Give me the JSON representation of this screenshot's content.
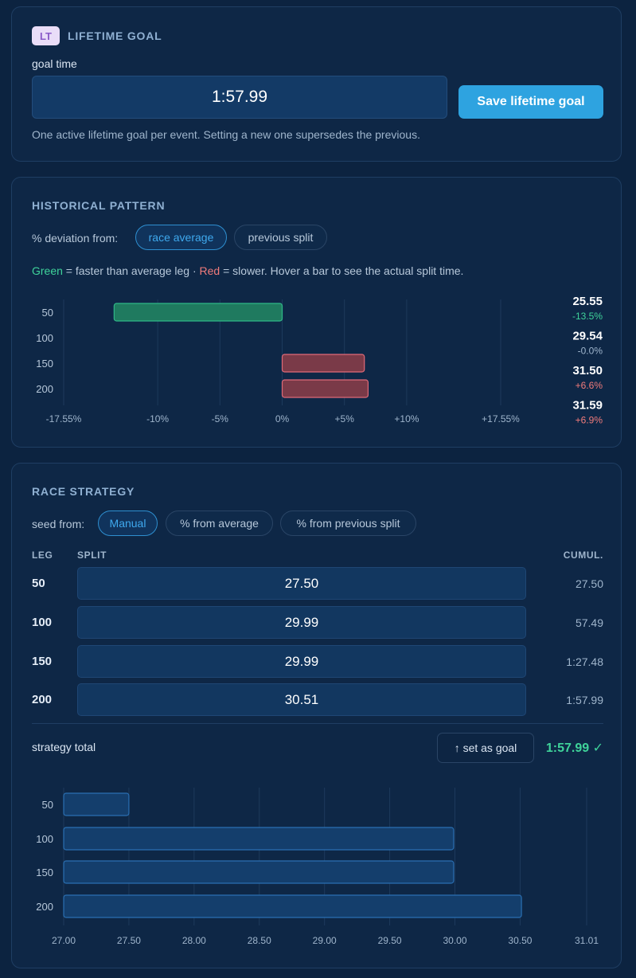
{
  "lifetime_goal": {
    "badge": "LT",
    "title": "LIFETIME GOAL",
    "goal_label": "goal time",
    "goal_value": "1:57.99",
    "save_label": "Save lifetime goal",
    "note": "One active lifetime goal per event. Setting a new one supersedes the previous."
  },
  "historical_pattern": {
    "title": "HISTORICAL PATTERN",
    "deviation_label": "% deviation from:",
    "options": [
      "race average",
      "previous split"
    ],
    "selected": "race average",
    "legend": {
      "green_word": "Green",
      "green_text": " = faster than average leg · ",
      "red_word": "Red",
      "red_text": " = slower. Hover a bar to see the actual split time."
    },
    "colors": {
      "faster": "#1f7a5f",
      "slower": "#7a3a48"
    }
  },
  "race_strategy": {
    "title": "RACE STRATEGY",
    "seed_label": "seed from:",
    "seed_options": [
      "Manual",
      "% from average",
      "% from previous split"
    ],
    "seed_selected": "Manual",
    "col_leg": "LEG",
    "col_split": "SPLIT",
    "col_cumul": "CUMUL.",
    "rows": [
      {
        "leg": "50",
        "split": "27.50",
        "cumul": "27.50"
      },
      {
        "leg": "100",
        "split": "29.99",
        "cumul": "57.49"
      },
      {
        "leg": "150",
        "split": "29.99",
        "cumul": "1:27.48"
      },
      {
        "leg": "200",
        "split": "30.51",
        "cumul": "1:57.99"
      }
    ],
    "total_label": "strategy total",
    "set_goal_label": "↑ set as goal",
    "total_value": "1:57.99 ✓"
  },
  "chart_data": [
    {
      "type": "bar",
      "orientation": "horizontal",
      "categories": [
        "50",
        "100",
        "150",
        "200"
      ],
      "values": [
        -13.5,
        -0.0,
        6.6,
        6.9
      ],
      "split_times": [
        "25.55",
        "29.54",
        "31.50",
        "31.59"
      ],
      "value_labels": [
        "-13.5%",
        "-0.0%",
        "+6.6%",
        "+6.9%"
      ],
      "xlim": [
        -17.55,
        17.55
      ],
      "xticks": [
        "-17.55%",
        "-10%",
        "-5%",
        "0%",
        "+5%",
        "+10%",
        "+17.55%"
      ],
      "xtick_values": [
        -17.55,
        -10,
        -5,
        0,
        5,
        10,
        17.55
      ],
      "grid": true
    },
    {
      "type": "bar",
      "orientation": "horizontal",
      "categories": [
        "50",
        "100",
        "150",
        "200"
      ],
      "values": [
        27.5,
        29.99,
        29.99,
        30.51
      ],
      "xlim": [
        27.0,
        31.01
      ],
      "xticks": [
        "27.00",
        "27.50",
        "28.00",
        "28.50",
        "29.00",
        "29.50",
        "30.00",
        "30.50",
        "31.01"
      ],
      "xtick_values": [
        27.0,
        27.5,
        28.0,
        28.5,
        29.0,
        29.5,
        30.0,
        30.5,
        31.01
      ],
      "grid": true
    }
  ]
}
